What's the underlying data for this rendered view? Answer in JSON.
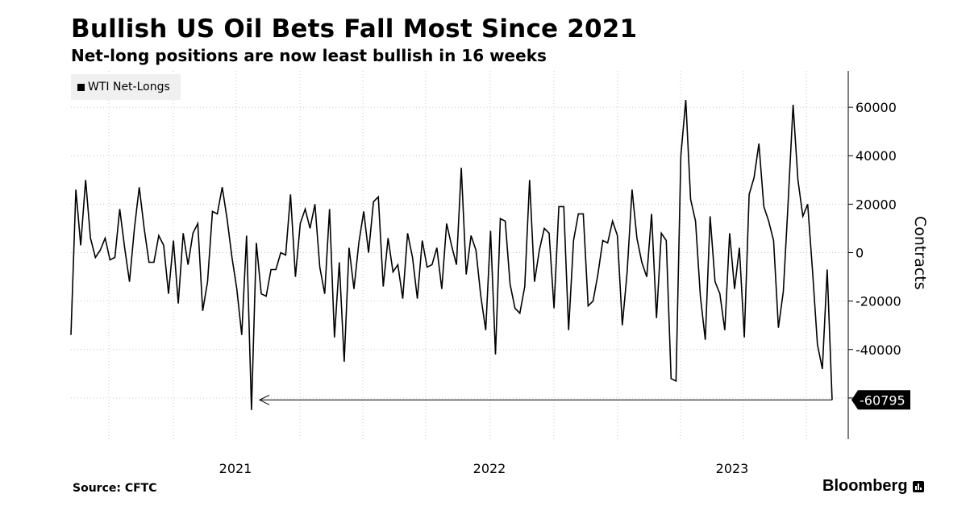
{
  "header": {
    "title": "Bullish US Oil Bets Fall Most Since 2021",
    "subtitle": "Net-long positions are now least bullish in 16 weeks"
  },
  "footer": {
    "source": "Source: CFTC",
    "brand": "Bloomberg"
  },
  "chart_data": {
    "type": "line",
    "title": "Bullish US Oil Bets Fall Most Since 2021",
    "subtitle": "Net-long positions are now least bullish in 16 weeks",
    "xlabel": "",
    "ylabel": "Contracts",
    "ylim": [
      -77000,
      75000
    ],
    "yticks": [
      -60000,
      -40000,
      -20000,
      0,
      20000,
      40000,
      60000
    ],
    "ytick_labels": [
      "-60000",
      "-40000",
      "-20000",
      "0",
      "20000",
      "40000",
      "60000"
    ],
    "xtick_labels": [
      "2021",
      "2022",
      "2023"
    ],
    "grid": true,
    "legend": "top-left",
    "last_value_label": "-60795",
    "series": [
      {
        "name": "WTI Net-Longs",
        "color": "#000000",
        "values": [
          -34000,
          26000,
          3000,
          30000,
          6000,
          -2000,
          1000,
          6000,
          -3000,
          -2000,
          18000,
          2000,
          -12000,
          10000,
          27000,
          10000,
          -4000,
          -4000,
          7000,
          3000,
          -17000,
          5000,
          -21000,
          8000,
          -5000,
          8000,
          12000,
          -24000,
          -12000,
          17000,
          16000,
          27000,
          14000,
          -2000,
          -15000,
          -34000,
          7000,
          -65000,
          4000,
          -17000,
          -18000,
          -7000,
          -7000,
          0,
          -1000,
          24000,
          -10000,
          12000,
          18000,
          10000,
          20000,
          -6000,
          -17000,
          18000,
          -35000,
          -4000,
          -45000,
          2000,
          -15000,
          4000,
          17000,
          0,
          21000,
          23000,
          -14000,
          6000,
          -8000,
          -5000,
          -19000,
          8000,
          -2000,
          -19000,
          5000,
          -6000,
          -5000,
          2000,
          -15000,
          12000,
          3000,
          -5000,
          35000,
          -9000,
          7000,
          1000,
          -18000,
          -32000,
          9000,
          -42000,
          14000,
          13000,
          -13000,
          -23000,
          -25000,
          -14000,
          30000,
          -12000,
          1000,
          10000,
          8000,
          -23000,
          19000,
          19000,
          -32000,
          5000,
          16000,
          16000,
          -22000,
          -20000,
          -9000,
          5000,
          4000,
          13000,
          7000,
          -30000,
          -8000,
          26000,
          6000,
          -4000,
          -10000,
          16000,
          -27000,
          8000,
          5000,
          -52000,
          -53000,
          40000,
          63000,
          22000,
          13000,
          -18000,
          -36000,
          15000,
          -12000,
          -17000,
          -32000,
          8000,
          -15000,
          2000,
          -35000,
          24000,
          31000,
          45000,
          19000,
          13000,
          5000,
          -31000,
          -16000,
          21000,
          61000,
          30000,
          15000,
          20000,
          -8000,
          -38000,
          -48000,
          -7000,
          -60795
        ]
      }
    ]
  }
}
